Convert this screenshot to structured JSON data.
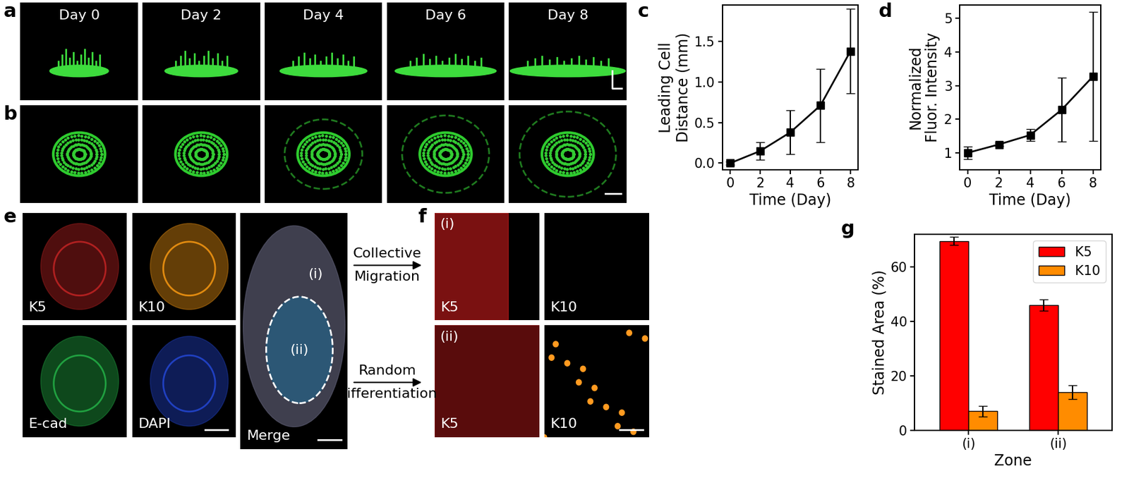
{
  "figure": {
    "panel_letters": [
      "a",
      "b",
      "c",
      "d",
      "e",
      "f",
      "g"
    ],
    "panel_a": {
      "labels": [
        "Day 0",
        "Day 2",
        "Day 4",
        "Day 6",
        "Day 8"
      ]
    },
    "panel_e": {
      "labels": [
        "K5",
        "K10",
        "E-cad",
        "DAPI",
        "Merge"
      ],
      "zones": [
        "(i)",
        "(ii)"
      ]
    },
    "arrows": [
      "Collective\nMigration",
      "Random\nDifferentiation"
    ],
    "panel_f": {
      "rows": [
        {
          "zone": "(i)",
          "labels": [
            "K5",
            "K10"
          ]
        },
        {
          "zone": "(ii)",
          "labels": [
            "K5",
            "K10"
          ]
        }
      ]
    }
  },
  "chart_data": [
    {
      "type": "line",
      "x": [
        0,
        2,
        4,
        6,
        8
      ],
      "values": [
        0.0,
        0.15,
        0.38,
        0.71,
        1.38
      ],
      "errors": [
        0.02,
        0.11,
        0.27,
        0.45,
        0.52
      ],
      "color": "#000000",
      "marker": "square",
      "x_label": "Time (Day)",
      "y_label": "Leading Cell\nDistance (mm)",
      "xlim": [
        -0.5,
        8.5
      ],
      "xticks": [
        0,
        2,
        4,
        6,
        8
      ],
      "ylim": [
        -0.08,
        1.95
      ],
      "yticks": [
        {
          "value": 0,
          "label": "0.0"
        },
        0.5,
        {
          "value": 1,
          "label": "1.0"
        },
        1.5
      ]
    },
    {
      "type": "line",
      "x": [
        0,
        2,
        4,
        6,
        8
      ],
      "values": [
        1.0,
        1.25,
        1.53,
        2.28,
        3.27
      ],
      "errors": [
        0.18,
        0.05,
        0.17,
        0.95,
        1.92
      ],
      "color": "#000000",
      "marker": "square",
      "x_label": "Time (Day)",
      "y_label": "Normalized\nFluor. Intensity",
      "xlim": [
        -0.5,
        8.5
      ],
      "xticks": [
        0,
        2,
        4,
        6,
        8
      ],
      "ylim": [
        0.5,
        5.4
      ],
      "yticks": [
        1,
        2,
        3,
        4,
        5
      ]
    },
    {
      "type": "bar",
      "categories": [
        "(i)",
        "(ii)"
      ],
      "series": [
        {
          "name": "K5",
          "color": "#ff0000",
          "values": [
            69.5,
            46.0
          ],
          "errors": [
            1.5,
            2.0
          ]
        },
        {
          "name": "K10",
          "color": "#ff8c00",
          "values": [
            7.0,
            14.0
          ],
          "errors": [
            2.0,
            2.5
          ]
        }
      ],
      "x_label": "Zone",
      "y_label": "Stained Area (%)",
      "ylim": [
        0,
        72
      ],
      "yticks": [
        0,
        20,
        40,
        60
      ],
      "legend": "upper right"
    }
  ]
}
